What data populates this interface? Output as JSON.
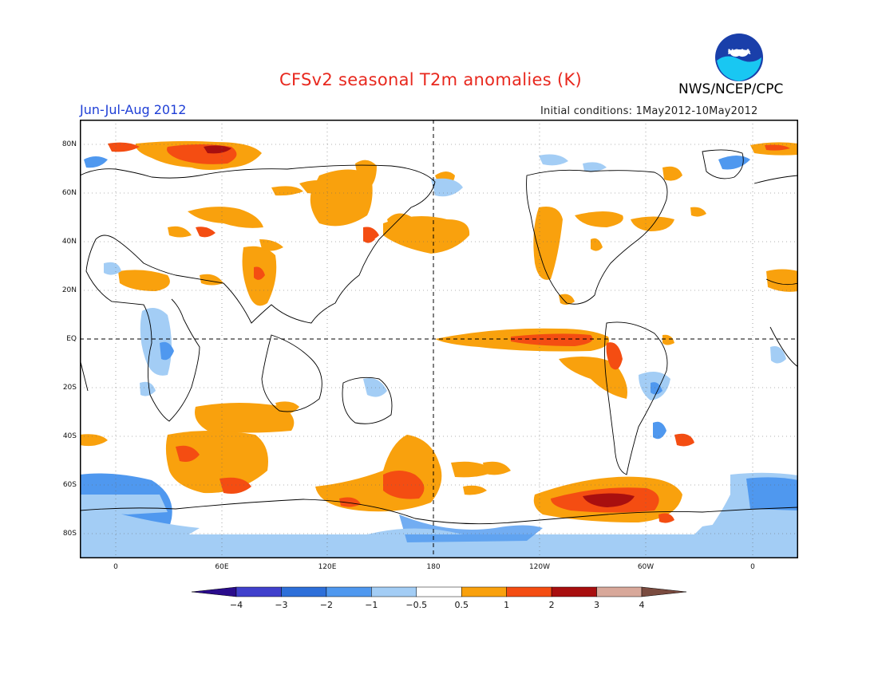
{
  "title": "CFSv2 seasonal T2m anomalies (K)",
  "agency": "NWS/NCEP/CPC",
  "logo_text": "NOAA",
  "season": "Jun-Jul-Aug 2012",
  "initial_conditions": "Initial conditions: 1May2012-10May2012",
  "lat_labels": [
    "80N",
    "60N",
    "40N",
    "20N",
    "EQ",
    "20S",
    "40S",
    "60S",
    "80S"
  ],
  "lon_labels": [
    "0",
    "60E",
    "120E",
    "180",
    "120W",
    "60W",
    "0"
  ],
  "colorbar": {
    "labels": [
      "-4",
      "-3",
      "-2",
      "-1",
      "-0.5",
      "0.5",
      "1",
      "2",
      "3",
      "4"
    ],
    "colors": [
      "#2a0c8c",
      "#4040cc",
      "#2d6fd9",
      "#4f98ef",
      "#a3cdf5",
      "#ffffff",
      "#f9a10d",
      "#f44d12",
      "#a80f0f",
      "#d8a89a",
      "#7a4b3f"
    ]
  }
}
